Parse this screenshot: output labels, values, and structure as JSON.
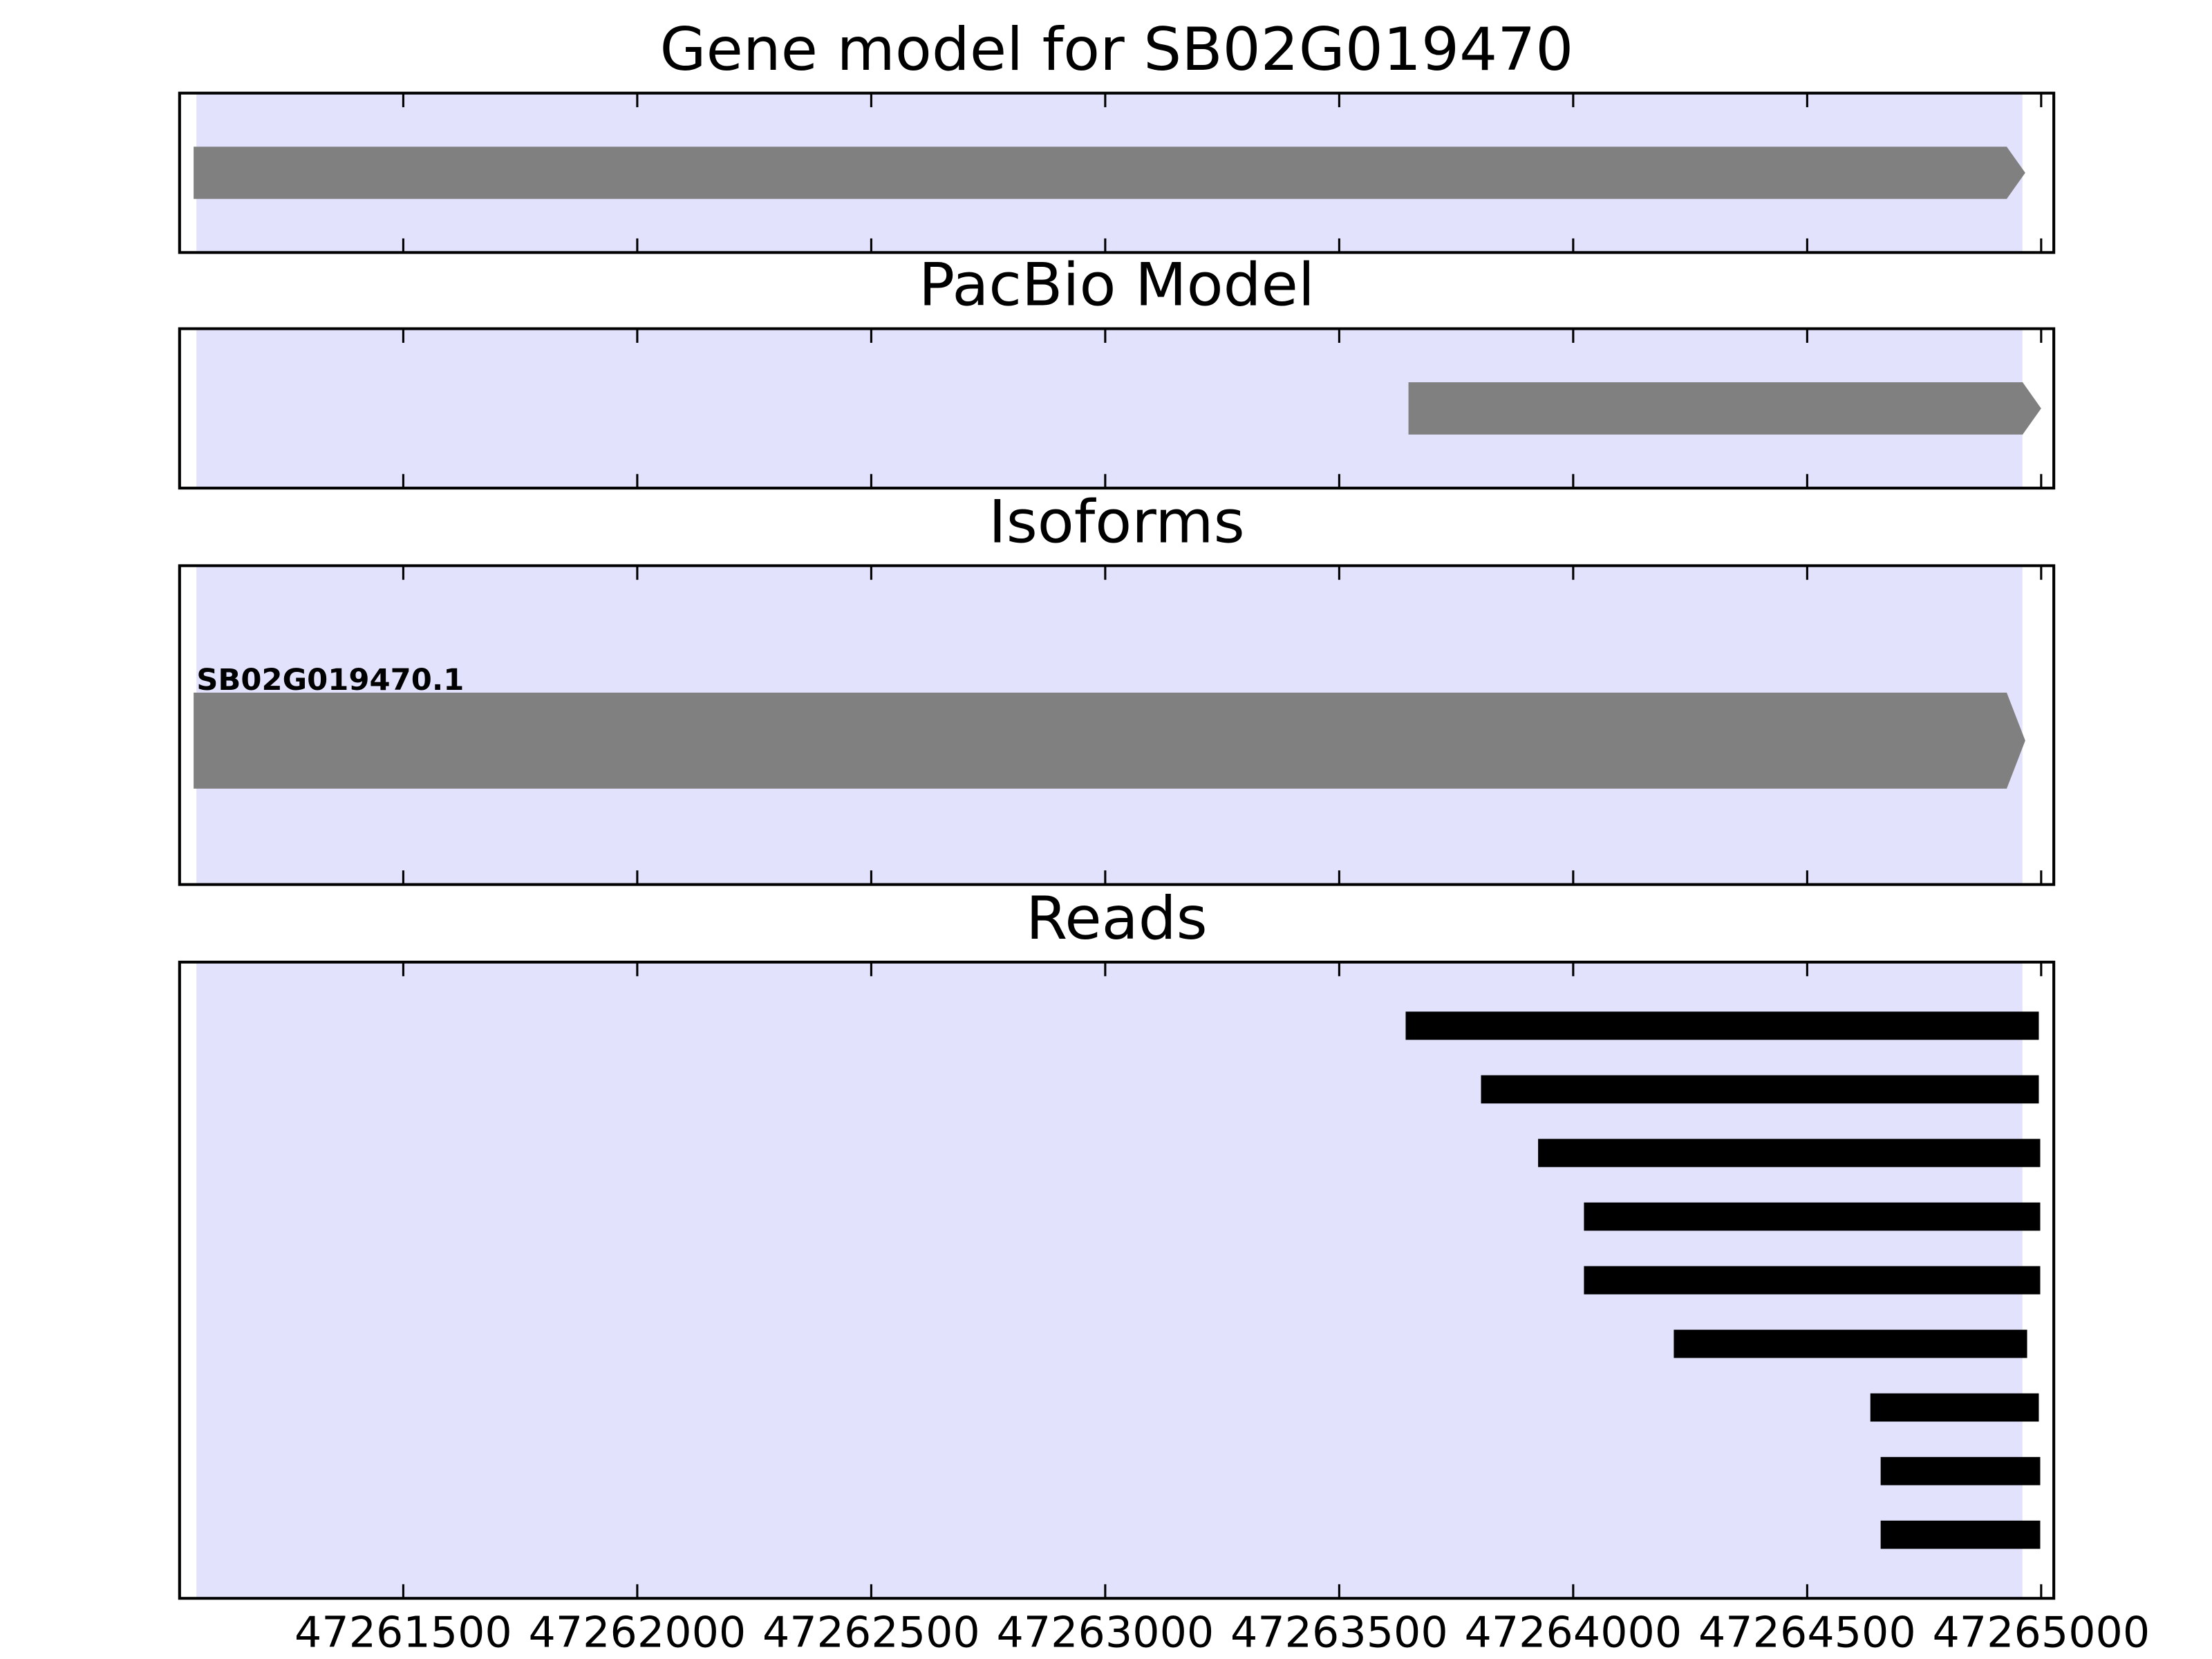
{
  "chart_data": [
    {
      "type": "gene",
      "title": "Gene model for SB02G019470",
      "xlim": [
        47261022,
        47265027
      ],
      "xticks": [
        47261500,
        47262000,
        47262500,
        47263000,
        47263500,
        47264000,
        47264500,
        47265000
      ],
      "highlight": [
        47261058,
        47264960
      ],
      "highlight_color": "#e2e2fd",
      "color": "#808080",
      "features": [
        {
          "start": 47261052,
          "end": 47264966
        }
      ]
    },
    {
      "type": "gene",
      "title": "PacBio Model",
      "xlim": [
        47261022,
        47265027
      ],
      "xticks": [
        47261500,
        47262000,
        47262500,
        47263000,
        47263500,
        47264000,
        47264500,
        47265000
      ],
      "highlight": [
        47261058,
        47264960
      ],
      "highlight_color": "#e2e2fd",
      "color": "#808080",
      "features": [
        {
          "start": 47263648,
          "end": 47265000
        }
      ]
    },
    {
      "type": "gene",
      "title": "Isoforms",
      "xlim": [
        47261022,
        47265027
      ],
      "xticks": [
        47261500,
        47262000,
        47262500,
        47263000,
        47263500,
        47264000,
        47264500,
        47265000
      ],
      "highlight": [
        47261058,
        47264960
      ],
      "highlight_color": "#e2e2fd",
      "color": "#808080",
      "features": [
        {
          "name": "SB02G019470.1",
          "start": 47261052,
          "end": 47264966
        }
      ]
    },
    {
      "type": "reads",
      "title": "Reads",
      "xlim": [
        47261022,
        47265027
      ],
      "xticks": [
        47261500,
        47262000,
        47262500,
        47263000,
        47263500,
        47264000,
        47264500,
        47265000
      ],
      "highlight": [
        47261058,
        47264960
      ],
      "highlight_color": "#e2e2fd",
      "color": "#000000",
      "features": [
        {
          "start": 47263642,
          "end": 47264995
        },
        {
          "start": 47263803,
          "end": 47264995
        },
        {
          "start": 47263925,
          "end": 47264998
        },
        {
          "start": 47264023,
          "end": 47264998
        },
        {
          "start": 47264023,
          "end": 47264998
        },
        {
          "start": 47264215,
          "end": 47264970
        },
        {
          "start": 47264635,
          "end": 47264995
        },
        {
          "start": 47264657,
          "end": 47264998
        },
        {
          "start": 47264657,
          "end": 47264998
        }
      ]
    }
  ]
}
